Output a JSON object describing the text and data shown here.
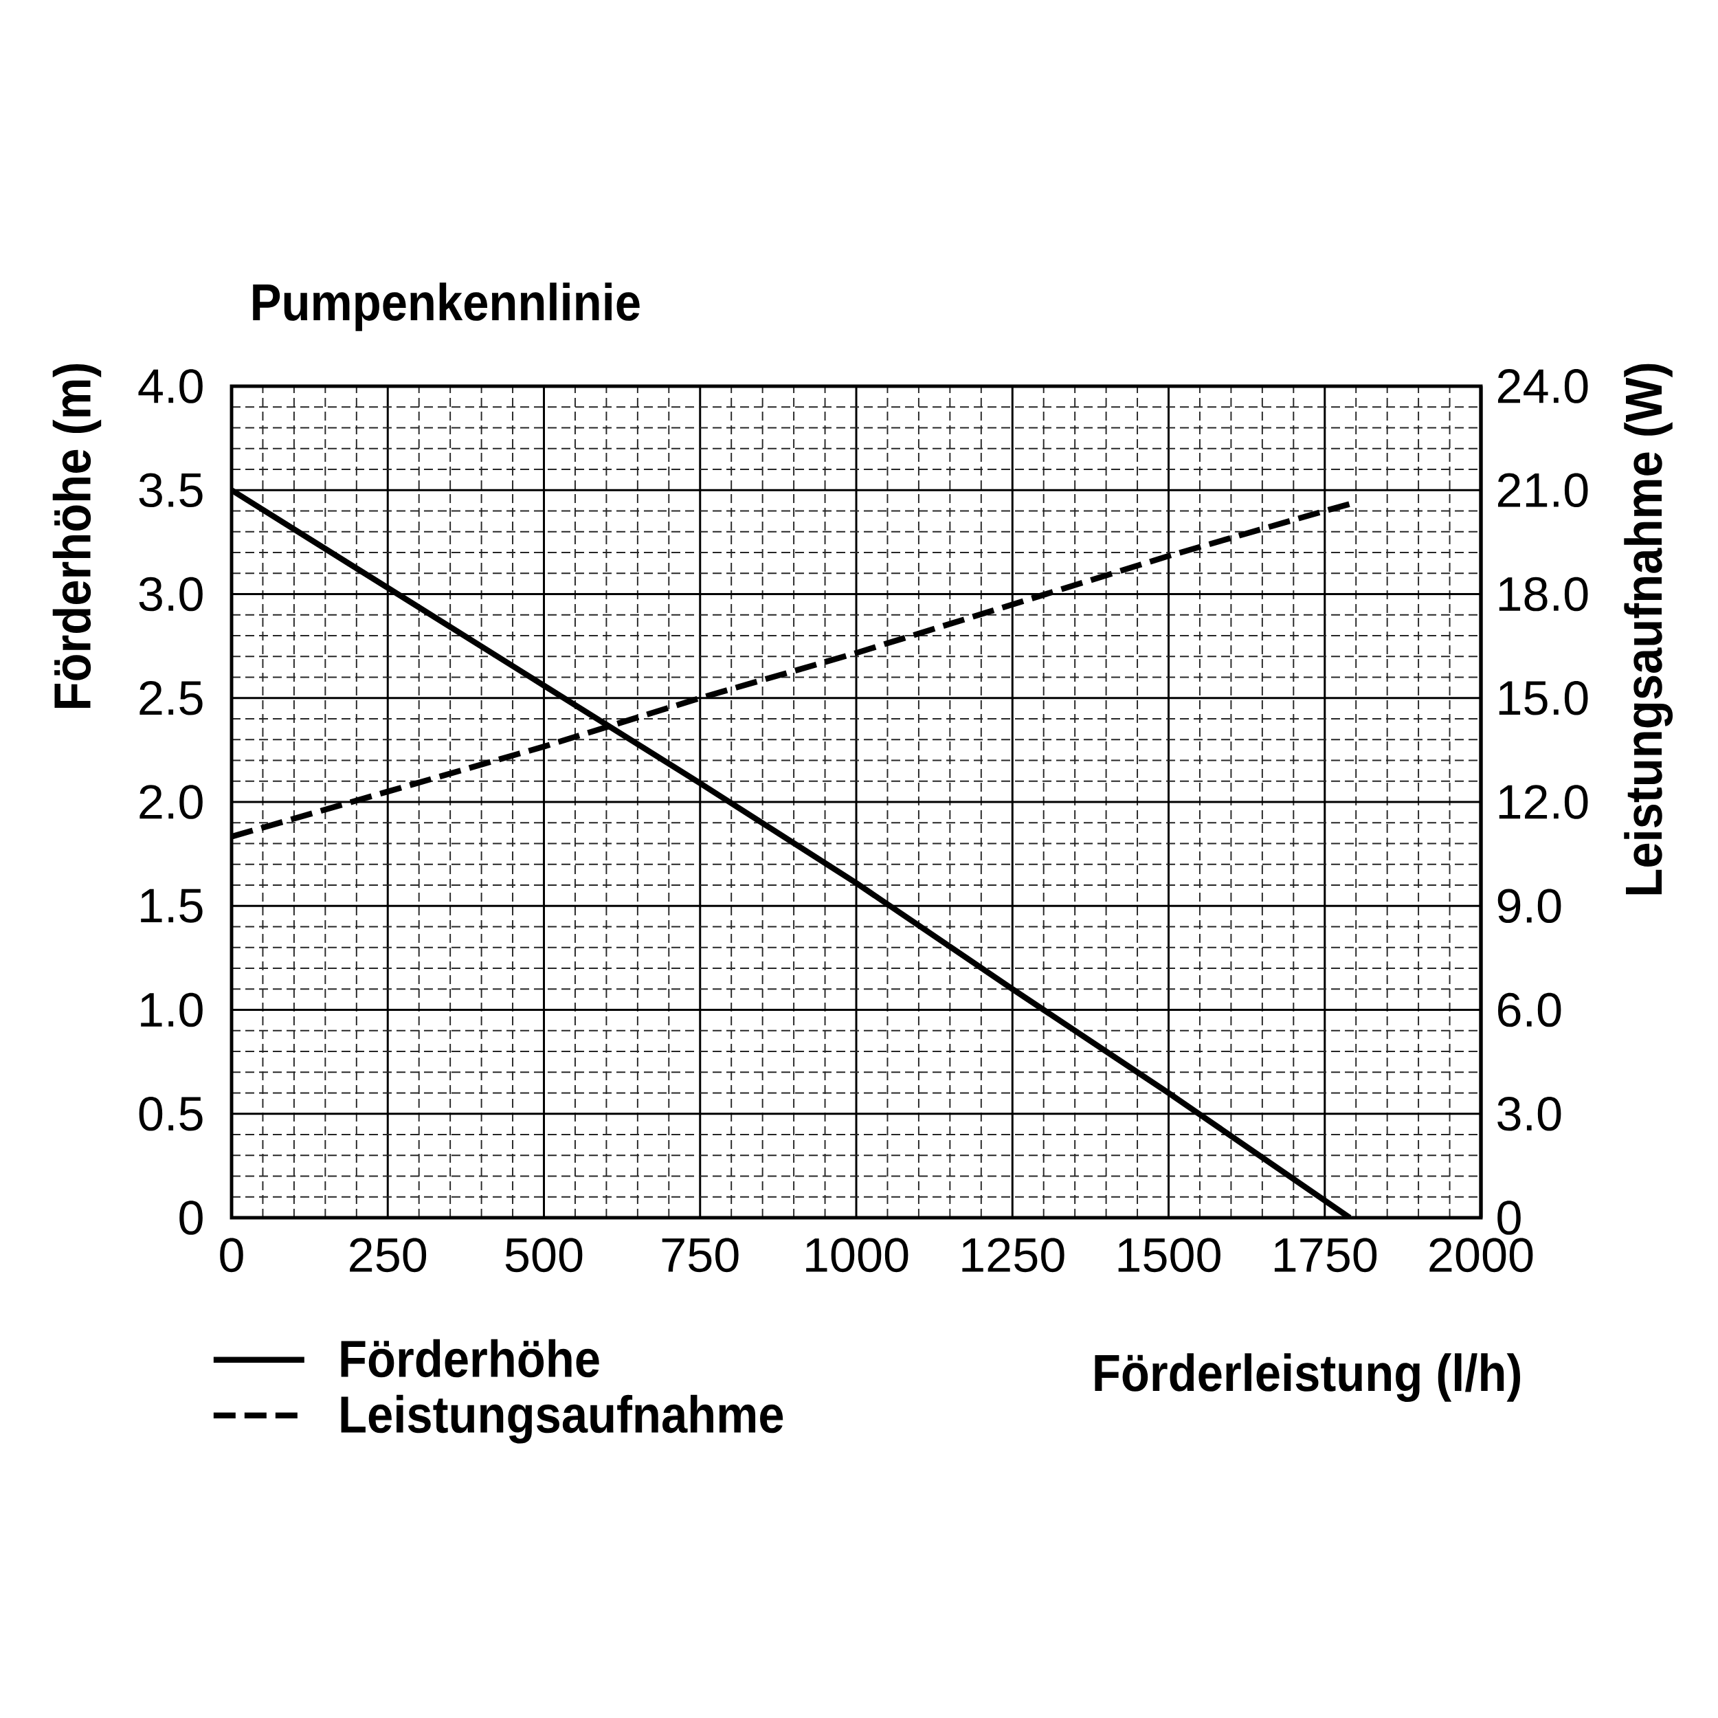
{
  "chart_data": {
    "type": "line",
    "title": "Pumpenkennlinie",
    "xlabel": "Förderleistung (l/h)",
    "ylabel": "Förderhöhe (m)",
    "y2label": "Leistungsaufnahme (W)",
    "xlim": [
      0,
      2000
    ],
    "xticks": [
      0,
      250,
      500,
      750,
      1000,
      1250,
      1500,
      1750,
      2000
    ],
    "ylim": [
      0,
      4
    ],
    "yticks": [
      0,
      0.5,
      {
        "value": 1,
        "label": "1.0"
      },
      1.5,
      {
        "value": 2,
        "label": "2.0"
      },
      2.5,
      {
        "value": 3,
        "label": "3.0"
      },
      3.5,
      {
        "value": 4,
        "label": "4.0"
      }
    ],
    "y2lim": [
      0,
      24
    ],
    "y2ticks": [
      0,
      {
        "value": 3,
        "label": "3.0"
      },
      {
        "value": 6,
        "label": "6.0"
      },
      {
        "value": 9,
        "label": "9.0"
      },
      {
        "value": 12,
        "label": "12.0"
      },
      {
        "value": 15,
        "label": "15.0"
      },
      {
        "value": 18,
        "label": "18.0"
      },
      {
        "value": 21,
        "label": "21.0"
      },
      {
        "value": 24,
        "label": "24.0"
      }
    ],
    "grid": true,
    "legend": "bottom left",
    "series": [
      {
        "name": "Förderhöhe",
        "color": "#000000",
        "line_style": "solid",
        "x": [
          0,
          250,
          500,
          750,
          1000,
          1250,
          1500,
          1790
        ],
        "values": [
          3.5,
          3.03,
          2.56,
          2.09,
          1.61,
          1.1,
          0.6,
          0
        ]
      },
      {
        "name": "Leistungsaufnahme",
        "color": "#000000",
        "line_style": "dashed",
        "axis": "y2",
        "x": [
          0,
          250,
          500,
          750,
          1000,
          1250,
          1500,
          1750,
          1790
        ],
        "values": [
          11.0,
          12.3,
          13.6,
          15.0,
          16.3,
          17.7,
          19.1,
          20.4,
          20.6
        ]
      }
    ]
  }
}
